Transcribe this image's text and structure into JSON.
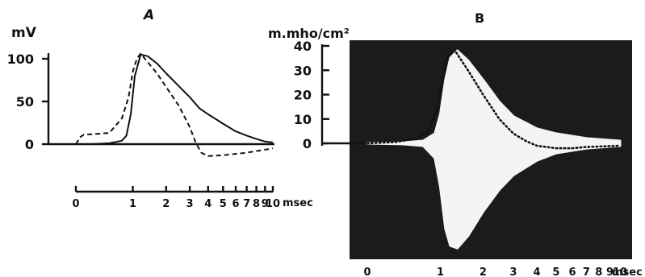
{
  "chart_data": [
    {
      "panel_label": "A",
      "type": "line",
      "ylabel": "mV",
      "xlabel": "msec",
      "y_ticks": [
        0,
        50,
        100
      ],
      "x_ticks": [
        0,
        1,
        2,
        3,
        4,
        5,
        6,
        7,
        8,
        9,
        10
      ],
      "x_scale": "log(1+t)",
      "ylim": [
        0,
        115
      ],
      "series": [
        {
          "style": "solid",
          "points": [
            [
              0,
              0
            ],
            [
              0.2,
              0
            ],
            [
              0.5,
              1
            ],
            [
              0.75,
              4
            ],
            [
              0.85,
              10
            ],
            [
              0.95,
              35
            ],
            [
              1.05,
              80
            ],
            [
              1.2,
              105
            ],
            [
              1.4,
              103
            ],
            [
              1.7,
              94
            ],
            [
              2.0,
              83
            ],
            [
              2.5,
              68
            ],
            [
              3.0,
              55
            ],
            [
              3.5,
              42
            ],
            [
              4,
              35
            ],
            [
              5,
              24
            ],
            [
              6,
              15
            ],
            [
              7,
              10
            ],
            [
              8,
              6
            ],
            [
              9,
              3
            ],
            [
              10,
              2
            ]
          ]
        },
        {
          "style": "dashed",
          "points": [
            [
              0,
              0
            ],
            [
              0.05,
              8
            ],
            [
              0.1,
              11
            ],
            [
              0.5,
              13
            ],
            [
              0.75,
              30
            ],
            [
              0.9,
              55
            ],
            [
              1.0,
              85
            ],
            [
              1.1,
              100
            ],
            [
              1.2,
              106
            ],
            [
              1.4,
              96
            ],
            [
              1.7,
              82
            ],
            [
              2.0,
              67
            ],
            [
              2.5,
              45
            ],
            [
              3.0,
              20
            ],
            [
              3.3,
              2
            ],
            [
              3.6,
              -10
            ],
            [
              4,
              -14
            ],
            [
              5,
              -13
            ],
            [
              7,
              -10
            ],
            [
              10,
              -5
            ]
          ]
        }
      ]
    },
    {
      "panel_label": "B",
      "type": "line",
      "ylabel": "m.mho/cm²",
      "xlabel": "msec",
      "y_ticks": [
        0,
        10,
        20,
        30,
        40
      ],
      "x_ticks": [
        0,
        1,
        2,
        3,
        4,
        5,
        6,
        7,
        8,
        9,
        10
      ],
      "x_scale": "log(1+t)",
      "ylim": [
        -45,
        40
      ],
      "background": "dark",
      "series": [
        {
          "style": "white-upper-envelope",
          "points": [
            [
              0,
              0
            ],
            [
              0.4,
              0.3
            ],
            [
              0.7,
              1
            ],
            [
              0.9,
              4
            ],
            [
              1.0,
              12
            ],
            [
              1.1,
              26
            ],
            [
              1.2,
              35
            ],
            [
              1.35,
              38
            ],
            [
              1.6,
              34
            ],
            [
              2,
              26
            ],
            [
              2.5,
              17
            ],
            [
              3,
              11
            ],
            [
              4,
              6
            ],
            [
              5,
              4
            ],
            [
              7,
              2
            ],
            [
              10,
              1
            ]
          ]
        },
        {
          "style": "white-lower-envelope",
          "points": [
            [
              0,
              0
            ],
            [
              0.4,
              -0.3
            ],
            [
              0.7,
              -1
            ],
            [
              0.9,
              -6
            ],
            [
              1.0,
              -18
            ],
            [
              1.1,
              -35
            ],
            [
              1.2,
              -42
            ],
            [
              1.35,
              -43
            ],
            [
              1.6,
              -38
            ],
            [
              2,
              -28
            ],
            [
              2.5,
              -19
            ],
            [
              3,
              -13
            ],
            [
              4,
              -7
            ],
            [
              5,
              -4
            ],
            [
              7,
              -2
            ],
            [
              10,
              -1
            ]
          ]
        },
        {
          "style": "dotted",
          "points": [
            [
              0,
              0
            ],
            [
              0.3,
              0.5
            ],
            [
              0.6,
              2
            ],
            [
              0.8,
              5
            ],
            [
              0.95,
              15
            ],
            [
              1.05,
              28
            ],
            [
              1.15,
              36
            ],
            [
              1.3,
              38
            ],
            [
              1.6,
              30
            ],
            [
              2,
              20
            ],
            [
              2.5,
              10
            ],
            [
              3,
              4
            ],
            [
              3.5,
              1
            ],
            [
              4,
              -1
            ],
            [
              5,
              -2
            ],
            [
              6,
              -2
            ],
            [
              7,
              -1.5
            ],
            [
              10,
              -1
            ]
          ]
        }
      ]
    }
  ]
}
